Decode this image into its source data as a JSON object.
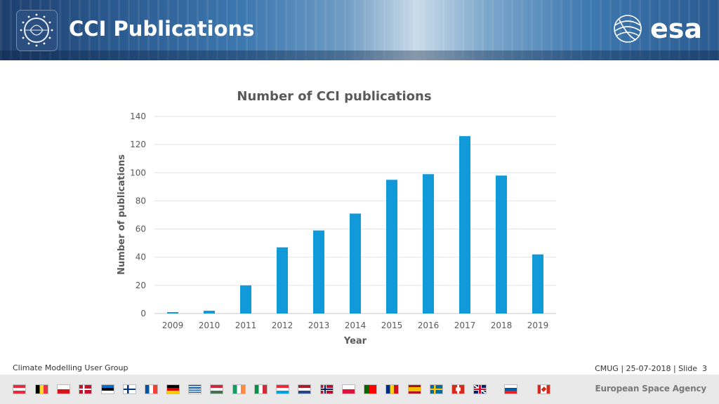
{
  "header": {
    "title": "CCI Publications",
    "brand": "esa"
  },
  "chart_data": {
    "type": "bar",
    "title": "Number of CCI publications",
    "xlabel": "Year",
    "ylabel": "Number of publications",
    "categories": [
      "2009",
      "2010",
      "2011",
      "2012",
      "2013",
      "2014",
      "2015",
      "2016",
      "2017",
      "2018",
      "2019"
    ],
    "values": [
      1,
      2,
      20,
      47,
      59,
      71,
      95,
      99,
      126,
      98,
      42
    ],
    "ylim": [
      0,
      140
    ],
    "yticks": [
      0,
      20,
      40,
      60,
      80,
      100,
      120,
      140
    ],
    "grid": true,
    "bar_color": "#1199d9"
  },
  "footer": {
    "left": "Climate Modelling User Group",
    "right": "CMUG | 25-07-2018 | Slide  3",
    "agency": "European Space Agency"
  },
  "flags": [
    "austria",
    "belgium",
    "czech-republic",
    "denmark",
    "estonia",
    "finland",
    "france",
    "germany",
    "greece",
    "hungary",
    "ireland",
    "italy",
    "luxembourg",
    "netherlands",
    "norway",
    "poland",
    "portugal",
    "romania",
    "spain",
    "sweden",
    "switzerland",
    "united-kingdom",
    "slovenia",
    "canada"
  ]
}
